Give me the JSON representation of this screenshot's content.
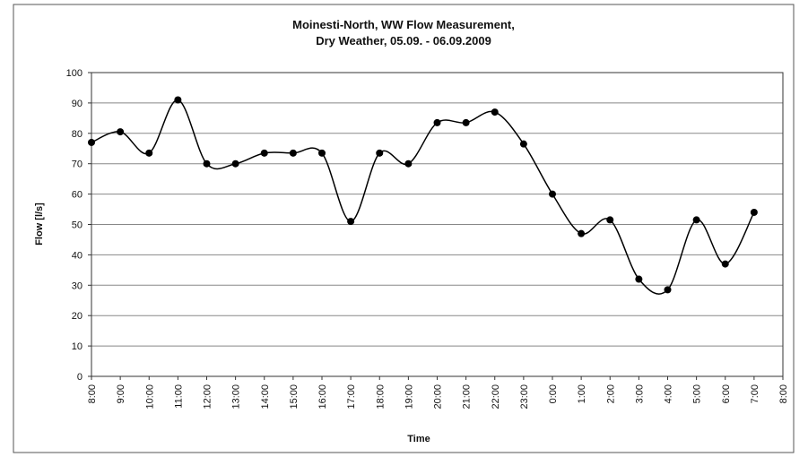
{
  "chart_data": {
    "type": "line",
    "title": [
      "Moinesti-North, WW Flow Measurement,",
      "Dry Weather, 05.09. - 06.09.2009"
    ],
    "x_label": "Time",
    "y_label": "Flow [l/s]",
    "categories": [
      "8:00",
      "9:00",
      "10:00",
      "11:00",
      "12:00",
      "13:00",
      "14:00",
      "15:00",
      "16:00",
      "17:00",
      "18:00",
      "19:00",
      "20:00",
      "21:00",
      "22:00",
      "23:00",
      "0:00",
      "1:00",
      "2:00",
      "3:00",
      "4:00",
      "5:00",
      "6:00",
      "7:00",
      "8:00"
    ],
    "series": [
      {
        "name": "Flow",
        "color": "#000000",
        "values": [
          77,
          80.5,
          73.5,
          91,
          70,
          70,
          73.5,
          73.5,
          73.5,
          51,
          73.5,
          70,
          83.5,
          83.5,
          87,
          76.5,
          60,
          47,
          51.5,
          32,
          28.5,
          51.5,
          37,
          54,
          null
        ]
      }
    ],
    "ylim": [
      0,
      100
    ],
    "yticks": [
      0,
      10,
      20,
      30,
      40,
      50,
      60,
      70,
      80,
      90,
      100
    ],
    "grid": true,
    "smooth": true
  }
}
